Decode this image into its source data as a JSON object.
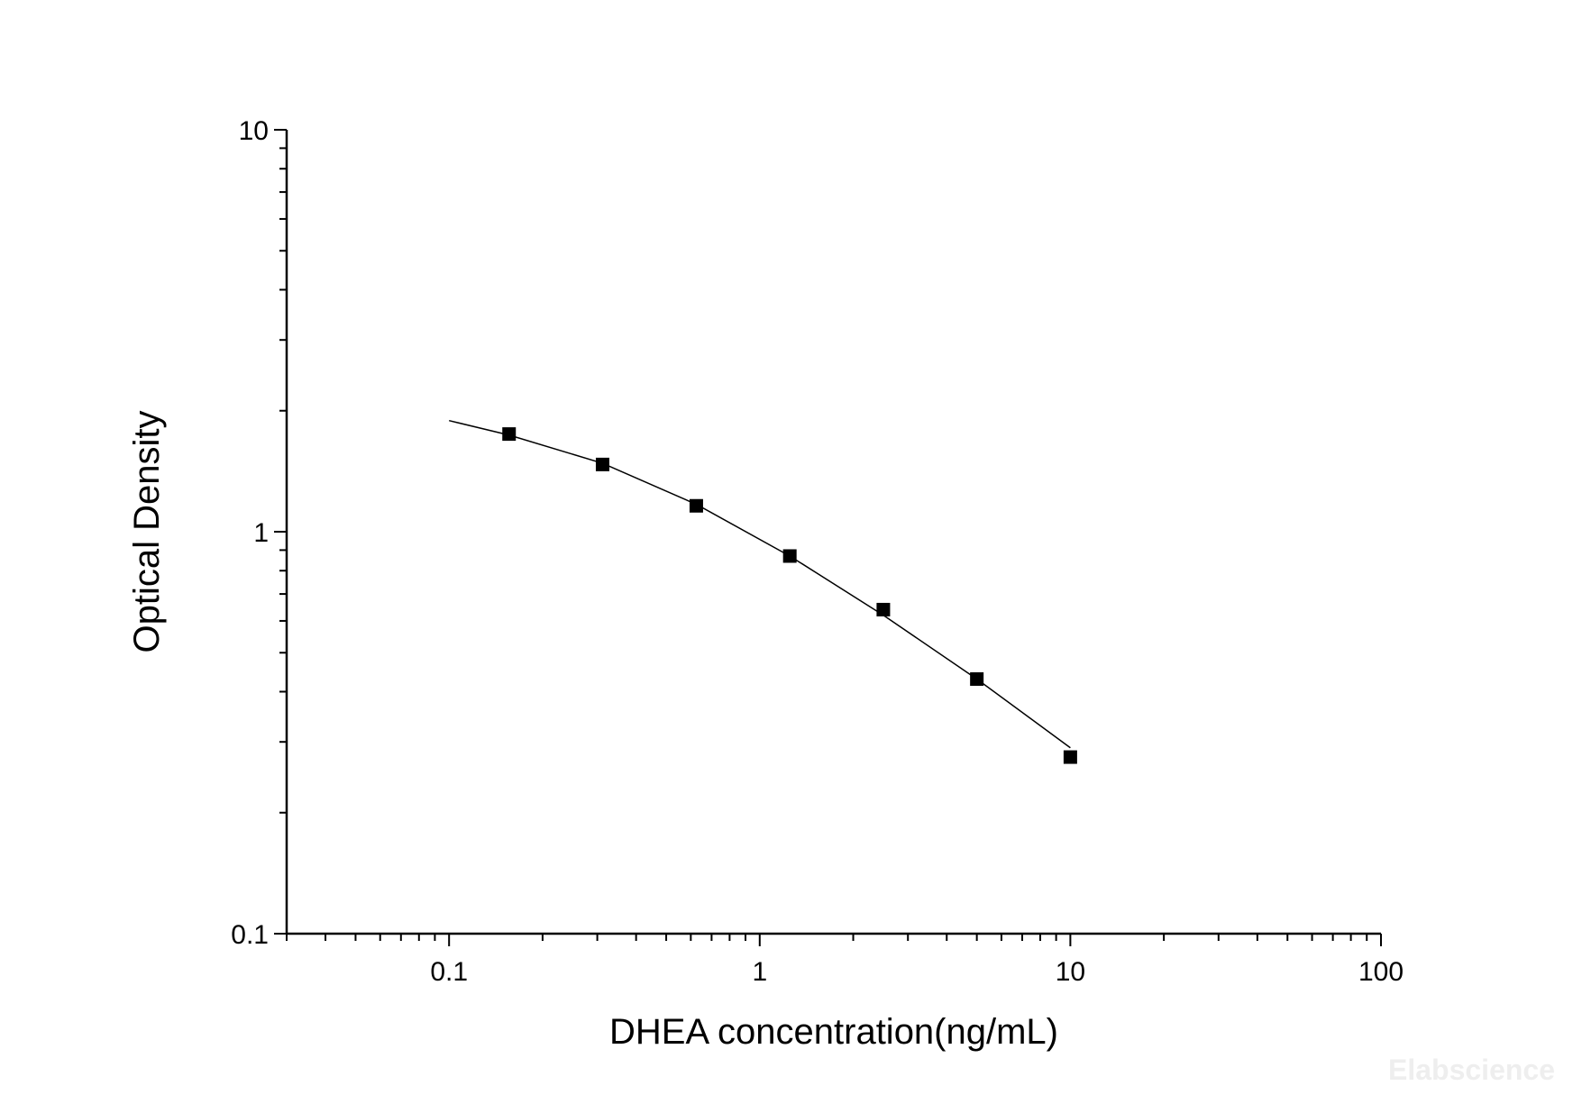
{
  "chart_data": {
    "type": "scatter",
    "title": "",
    "xlabel": "DHEA concentration(ng/mL)",
    "ylabel": "Optical Density",
    "x_scale": "log",
    "y_scale": "log",
    "xlim": [
      0.03,
      100
    ],
    "ylim": [
      0.1,
      10
    ],
    "x_tick_labels": [
      "0.1",
      "1",
      "10",
      "100"
    ],
    "y_tick_labels": [
      "0.1",
      "1",
      "10"
    ],
    "grid": false,
    "legend": "none",
    "marker_color": "#000000",
    "line_color": "#000000",
    "points": {
      "x": [
        0.156,
        0.312,
        0.625,
        1.25,
        2.5,
        5,
        10
      ],
      "y": [
        1.75,
        1.47,
        1.16,
        0.87,
        0.64,
        0.43,
        0.275
      ]
    },
    "fit_curve": {
      "x": [
        0.1,
        0.156,
        0.312,
        0.625,
        1.25,
        2.5,
        5,
        10
      ],
      "y": [
        1.89,
        1.74,
        1.48,
        1.17,
        0.87,
        0.62,
        0.43,
        0.29
      ]
    }
  },
  "watermark": "Elabscience"
}
